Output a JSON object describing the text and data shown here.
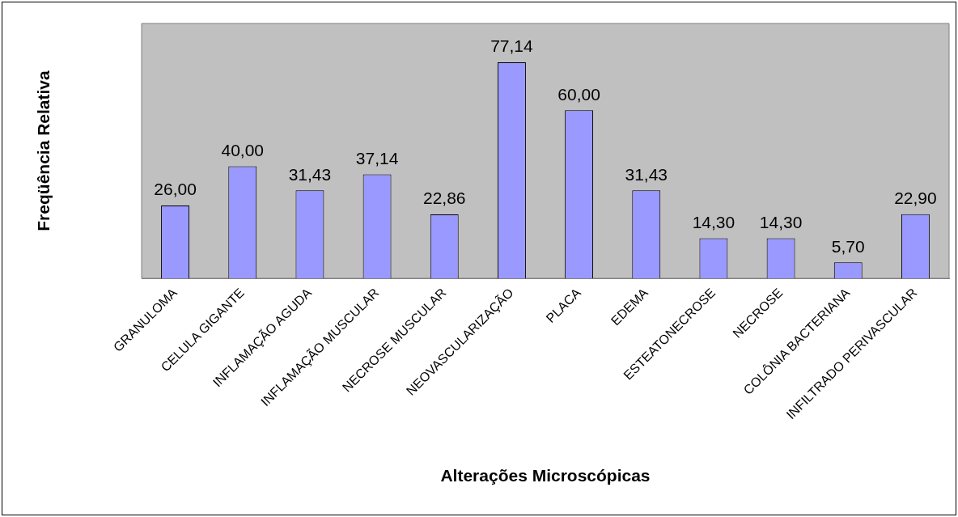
{
  "chart_data": {
    "type": "bar",
    "xlabel": "Alterações Microscópicas",
    "ylabel": "Freqüência Relativa",
    "categories": [
      "GRANULOMA",
      "CELULA GIGANTE",
      "INFLAMAÇÃO AGUDA",
      "INFLAMAÇÃO MUSCULAR",
      "NECROSE MUSCULAR",
      "NEOVASCULARIZAÇÃO",
      "PLACA",
      "EDEMA",
      "ESTEATONECROSE",
      "NECROSE",
      "COLÔNIA BACTERIANA",
      "INFILTRADO PERIVASCULAR"
    ],
    "values": [
      26,
      40,
      31.43,
      37.14,
      22.86,
      77.14,
      60,
      31.43,
      14.3,
      14.3,
      5.7,
      22.9
    ],
    "value_labels": [
      "26,00",
      "40,00",
      "31,43",
      "37,14",
      "22,86",
      "77,14",
      "60,00",
      "31,43",
      "14,30",
      "14,30",
      "5,70",
      "22,90"
    ],
    "color": "#9999ff",
    "grid": false,
    "legend": false
  }
}
